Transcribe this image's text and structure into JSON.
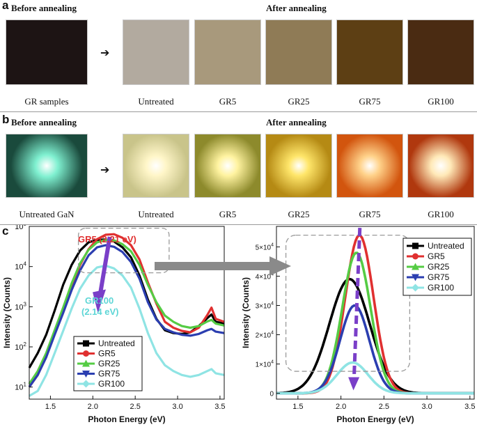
{
  "panel_a": {
    "letter": "a",
    "before_header": "Before annealing",
    "after_header": "After annealing",
    "samples": [
      {
        "label": "GR samples",
        "color": "#1d1414"
      },
      {
        "label": "Untreated",
        "color": "#b2aa9f"
      },
      {
        "label": "GR5",
        "color": "#a8997c"
      },
      {
        "label": "GR25",
        "color": "#8f7b56"
      },
      {
        "label": "GR75",
        "color": "#5d3f14"
      },
      {
        "label": "GR100",
        "color": "#4a2b12"
      }
    ]
  },
  "panel_b": {
    "letter": "b",
    "before_header": "Before annealing",
    "after_header": "After annealing",
    "samples": [
      {
        "label": "Untreated GaN",
        "glow": "#7ff0d0",
        "bg": "#1a4a3c"
      },
      {
        "label": "Untreated",
        "glow": "#fff6c8",
        "bg": "#c9c48a"
      },
      {
        "label": "GR5",
        "glow": "#fff3a0",
        "bg": "#8d8a2c"
      },
      {
        "label": "GR25",
        "glow": "#ffe66a",
        "bg": "#b58a14"
      },
      {
        "label": "GR75",
        "glow": "#ffd28a",
        "bg": "#d2550e"
      },
      {
        "label": "GR100",
        "glow": "#ffe9b8",
        "bg": "#b0380e"
      }
    ]
  },
  "panel_c": {
    "letter": "c",
    "annotation_top": "GR5 (2.21 eV)",
    "annotation_bottom_line1": "GR100",
    "annotation_bottom_line2": "(2.14 eV)",
    "annotation_top_color": "#e03030",
    "annotation_bottom_color": "#5ed6d6",
    "arrow_color": "#7a3fc8"
  },
  "chart_data": [
    {
      "type": "line",
      "xlabel": "Photon Energy (eV)",
      "ylabel": "Intensity (Counts)",
      "xlim": [
        1.25,
        3.55
      ],
      "ylim": [
        5,
        100000
      ],
      "yscale": "log",
      "x_ticks": [
        "1.5",
        "2.0",
        "2.5",
        "3.0",
        "3.5"
      ],
      "y_ticks": [
        "10^1",
        "10^2",
        "10^3",
        "10^4",
        "10^5"
      ],
      "legend_position": "bottom-left",
      "series": [
        {
          "name": "Untreated",
          "color": "#000000",
          "marker": "square",
          "x": [
            1.25,
            1.35,
            1.45,
            1.55,
            1.65,
            1.75,
            1.85,
            1.95,
            2.05,
            2.15,
            2.25,
            2.35,
            2.45,
            2.55,
            2.65,
            2.75,
            2.85,
            2.95,
            3.05,
            3.15,
            3.25,
            3.35,
            3.4,
            3.45,
            3.55
          ],
          "y": [
            30,
            70,
            200,
            800,
            3500,
            11000,
            25000,
            40000,
            46000,
            47000,
            42000,
            30000,
            17000,
            6000,
            1500,
            500,
            260,
            220,
            210,
            230,
            330,
            520,
            640,
            420,
            380
          ]
        },
        {
          "name": "GR5",
          "color": "#e03030",
          "marker": "circle",
          "x": [
            1.25,
            1.35,
            1.45,
            1.55,
            1.65,
            1.75,
            1.85,
            1.95,
            2.05,
            2.15,
            2.25,
            2.35,
            2.45,
            2.55,
            2.65,
            2.75,
            2.85,
            2.95,
            3.05,
            3.15,
            3.25,
            3.35,
            3.4,
            3.45,
            3.55
          ],
          "y": [
            10,
            20,
            60,
            220,
            800,
            3200,
            11000,
            27000,
            48000,
            62000,
            64000,
            52000,
            34000,
            15000,
            4000,
            1200,
            420,
            300,
            250,
            230,
            300,
            620,
            950,
            500,
            420
          ]
        },
        {
          "name": "GR25",
          "color": "#55cc44",
          "marker": "triangle-up",
          "x": [
            1.25,
            1.35,
            1.45,
            1.55,
            1.65,
            1.75,
            1.85,
            1.95,
            2.05,
            2.15,
            2.25,
            2.35,
            2.45,
            2.55,
            2.65,
            2.75,
            2.85,
            2.95,
            3.05,
            3.15,
            3.25,
            3.35,
            3.4,
            3.45,
            3.55
          ],
          "y": [
            12,
            25,
            70,
            260,
            950,
            3800,
            12000,
            26000,
            40000,
            46000,
            45000,
            36000,
            24000,
            11000,
            3500,
            1300,
            600,
            420,
            330,
            300,
            330,
            430,
            470,
            380,
            340
          ]
        },
        {
          "name": "GR75",
          "color": "#2b3eb0",
          "marker": "triangle-down",
          "x": [
            1.25,
            1.35,
            1.45,
            1.55,
            1.65,
            1.75,
            1.85,
            1.95,
            2.05,
            2.15,
            2.25,
            2.35,
            2.45,
            2.55,
            2.65,
            2.75,
            2.85,
            2.95,
            3.05,
            3.15,
            3.25,
            3.35,
            3.4,
            3.45,
            3.55
          ],
          "y": [
            10,
            20,
            55,
            200,
            700,
            2600,
            8000,
            19000,
            30000,
            34000,
            31000,
            23000,
            13000,
            5000,
            1300,
            480,
            280,
            230,
            200,
            190,
            210,
            260,
            280,
            240,
            220
          ]
        },
        {
          "name": "GR100",
          "color": "#8fe4e4",
          "marker": "diamond",
          "x": [
            1.25,
            1.35,
            1.45,
            1.55,
            1.65,
            1.75,
            1.85,
            1.95,
            2.05,
            2.15,
            2.25,
            2.35,
            2.45,
            2.55,
            2.65,
            2.75,
            2.85,
            2.95,
            3.05,
            3.15,
            3.25,
            3.35,
            3.4,
            3.45,
            3.55
          ],
          "y": [
            6,
            8,
            20,
            70,
            250,
            900,
            2800,
            6000,
            9500,
            10500,
            9000,
            6000,
            3000,
            900,
            220,
            70,
            35,
            25,
            20,
            18,
            20,
            25,
            28,
            22,
            20
          ]
        }
      ]
    },
    {
      "type": "line",
      "xlabel": "Photon Energy (eV)",
      "ylabel": "Intensity (Counts)",
      "xlim": [
        1.25,
        3.55
      ],
      "ylim": [
        -2000,
        57000
      ],
      "yscale": "linear",
      "x_ticks": [
        "1.5",
        "2.0",
        "2.5",
        "3.0",
        "3.5"
      ],
      "y_ticks": [
        "0",
        "1×10^4",
        "2×10^4",
        "3×10^4",
        "4×10^4",
        "5×10^4"
      ],
      "legend_position": "top-right",
      "series": [
        {
          "name": "Untreated",
          "color": "#000000",
          "center": 2.1,
          "sigma": 0.235,
          "peak": 39000
        },
        {
          "name": "GR5",
          "color": "#e03030",
          "center": 2.215,
          "sigma": 0.165,
          "peak": 54000
        },
        {
          "name": "GR25",
          "color": "#55cc44",
          "center": 2.18,
          "sigma": 0.165,
          "peak": 48000
        },
        {
          "name": "GR75",
          "color": "#2b3eb0",
          "center": 2.16,
          "sigma": 0.17,
          "peak": 30000
        },
        {
          "name": "GR100",
          "color": "#8fe4e4",
          "center": 2.135,
          "sigma": 0.18,
          "peak": 10500
        }
      ]
    }
  ]
}
